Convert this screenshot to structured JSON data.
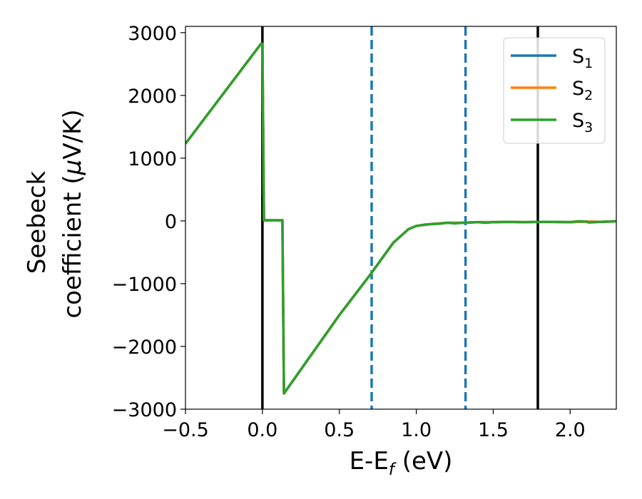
{
  "chart_data": {
    "type": "line",
    "title": "",
    "xlabel": "E-E",
    "xlabel_sub": "f",
    "xlabel_unit": " (eV)",
    "ylabel_line1": "Seebeck",
    "ylabel_line2": "coefficient  (",
    "ylabel_mu": "μ",
    "ylabel_unit": "V/K)",
    "xlim": [
      -0.5,
      2.3
    ],
    "ylim": [
      -3000,
      3100
    ],
    "x_ticks": [
      -0.5,
      0.0,
      0.5,
      1.0,
      1.5,
      2.0
    ],
    "x_tick_labels": [
      "−0.5",
      "0.0",
      "0.5",
      "1.0",
      "1.5",
      "2.0"
    ],
    "y_ticks": [
      -3000,
      -2000,
      -1000,
      0,
      1000,
      2000,
      3000
    ],
    "y_tick_labels": [
      "−3000",
      "−2000",
      "−1000",
      "0",
      "1000",
      "2000",
      "3000"
    ],
    "grid": false,
    "legend_position": "top-right",
    "colors": {
      "s1": "#1f77b4",
      "s2": "#ff7f0e",
      "s3": "#2ca02c",
      "vline_solid": "#000000",
      "vline_dashed": "#1f77b4"
    },
    "series": [
      {
        "name": "S",
        "sub": "1",
        "color": "#1f77b4",
        "points": [
          [
            -0.5,
            1230
          ],
          [
            -0.01,
            2820
          ],
          [
            0.0,
            2820
          ],
          [
            0.01,
            10
          ],
          [
            0.13,
            10
          ],
          [
            0.14,
            -2750
          ],
          [
            0.5,
            -1500
          ],
          [
            0.7,
            -860
          ],
          [
            0.85,
            -350
          ],
          [
            0.95,
            -130
          ],
          [
            1.0,
            -80
          ],
          [
            1.1,
            -50
          ],
          [
            1.2,
            -30
          ],
          [
            1.3,
            -30
          ],
          [
            1.4,
            -20
          ],
          [
            1.5,
            -20
          ],
          [
            1.6,
            -15
          ],
          [
            1.7,
            -20
          ],
          [
            1.8,
            -15
          ],
          [
            2.0,
            -20
          ],
          [
            2.1,
            -10
          ],
          [
            2.2,
            -15
          ],
          [
            2.3,
            -5
          ]
        ]
      },
      {
        "name": "S",
        "sub": "2",
        "color": "#ff7f0e",
        "points": [
          [
            -0.5,
            1230
          ],
          [
            -0.01,
            2820
          ],
          [
            0.0,
            2820
          ],
          [
            0.01,
            10
          ],
          [
            0.13,
            10
          ],
          [
            0.14,
            -2750
          ],
          [
            0.5,
            -1500
          ],
          [
            0.7,
            -860
          ],
          [
            0.85,
            -350
          ],
          [
            0.95,
            -130
          ],
          [
            1.0,
            -80
          ],
          [
            1.1,
            -50
          ],
          [
            1.2,
            -30
          ],
          [
            1.3,
            -30
          ],
          [
            1.4,
            -20
          ],
          [
            1.5,
            -20
          ],
          [
            1.6,
            -15
          ],
          [
            1.7,
            -20
          ],
          [
            1.8,
            -15
          ],
          [
            2.0,
            -20
          ],
          [
            2.1,
            -10
          ],
          [
            2.2,
            -15
          ],
          [
            2.3,
            -5
          ]
        ]
      },
      {
        "name": "S",
        "sub": "3",
        "color": "#2ca02c",
        "points": [
          [
            -0.5,
            1230
          ],
          [
            -0.01,
            2820
          ],
          [
            0.0,
            2820
          ],
          [
            0.01,
            10
          ],
          [
            0.13,
            10
          ],
          [
            0.14,
            -2750
          ],
          [
            0.5,
            -1500
          ],
          [
            0.7,
            -860
          ],
          [
            0.85,
            -350
          ],
          [
            0.95,
            -130
          ],
          [
            1.0,
            -80
          ],
          [
            1.05,
            -60
          ],
          [
            1.1,
            -50
          ],
          [
            1.15,
            -45
          ],
          [
            1.2,
            -30
          ],
          [
            1.25,
            -40
          ],
          [
            1.3,
            -30
          ],
          [
            1.35,
            -25
          ],
          [
            1.4,
            -20
          ],
          [
            1.45,
            -30
          ],
          [
            1.5,
            -20
          ],
          [
            1.6,
            -15
          ],
          [
            1.7,
            -20
          ],
          [
            1.8,
            -15
          ],
          [
            1.9,
            -15
          ],
          [
            2.0,
            -20
          ],
          [
            2.05,
            -5
          ],
          [
            2.1,
            -10
          ],
          [
            2.12,
            -25
          ],
          [
            2.2,
            -15
          ],
          [
            2.3,
            -5
          ]
        ]
      }
    ],
    "vlines": [
      {
        "x": 0.0,
        "style": "solid"
      },
      {
        "x": 1.79,
        "style": "solid"
      },
      {
        "x": 0.71,
        "style": "dashed"
      },
      {
        "x": 1.32,
        "style": "dashed"
      }
    ]
  }
}
